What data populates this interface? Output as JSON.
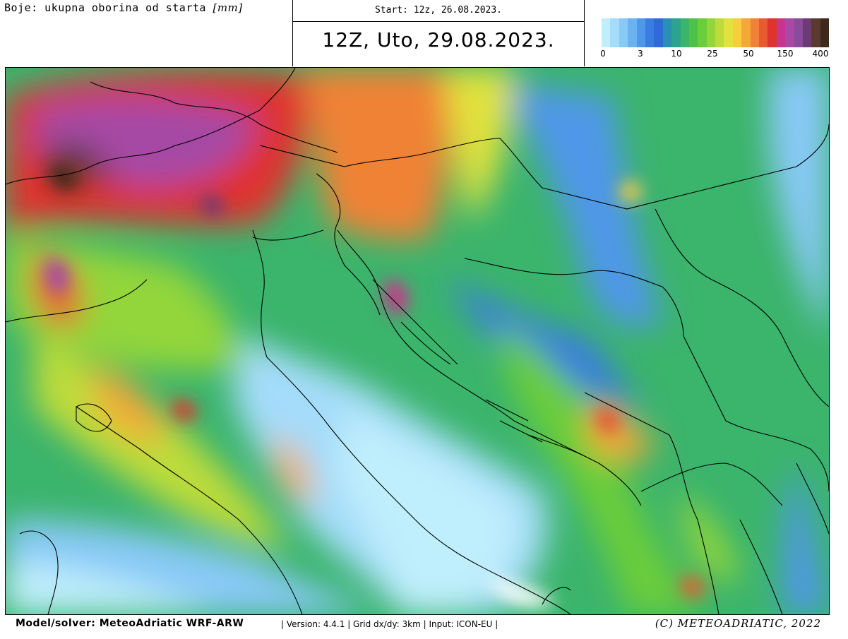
{
  "header": {
    "colors_label": "Boje: ukupna oborina od starta",
    "unit": "[mm]",
    "start": "Start: 12z, 26.08.2023.",
    "valid": "12Z, Uto, 29.08.2023."
  },
  "legend": {
    "colors": [
      "#bfeefc",
      "#a4dcfa",
      "#88c9f6",
      "#6cb2f0",
      "#4f97e8",
      "#3b7ce0",
      "#2f6ad8",
      "#2b8fb5",
      "#2aa38f",
      "#3bb46c",
      "#4fc04a",
      "#6acd3a",
      "#93d63a",
      "#bddc3a",
      "#e1e23c",
      "#f5cf3a",
      "#f5a838",
      "#f08235",
      "#e85a30",
      "#e0332d",
      "#c9358c",
      "#a64aa5",
      "#8a4b9a",
      "#6d3a78",
      "#5a3a2e",
      "#3e2a1c"
    ],
    "ticks": [
      "0",
      "3",
      "10",
      "25",
      "50",
      "150",
      "400"
    ]
  },
  "footer": {
    "model": "Model/solver: MeteoAdriatic WRF-ARW",
    "meta": "| Version: 4.4.1 | Grid dx/dy: 3km | Input: ICON-EU |",
    "copyright": "(C) METEOADRIATIC, 2022"
  }
}
